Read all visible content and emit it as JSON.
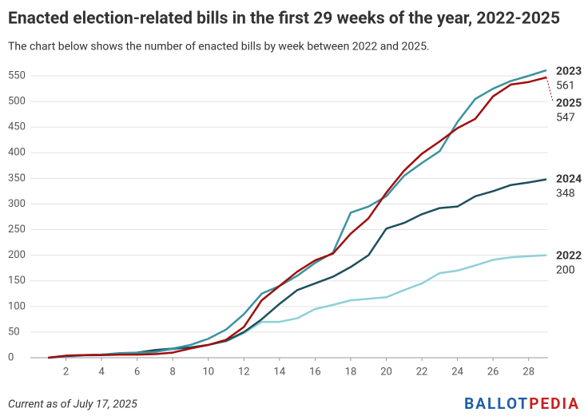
{
  "chart_data": {
    "type": "line",
    "title": "Enacted election-related bills in the first 29 weeks of the year, 2022-2025",
    "subtitle": "The chart below shows the number of enacted bills by week between 2022 and 2025.",
    "x": [
      1,
      2,
      3,
      4,
      5,
      6,
      7,
      8,
      9,
      10,
      11,
      12,
      13,
      14,
      15,
      16,
      17,
      18,
      19,
      20,
      21,
      22,
      23,
      24,
      25,
      26,
      27,
      28,
      29
    ],
    "series": [
      {
        "name": "2022",
        "color": "#8fd0d8",
        "values": [
          0,
          2,
          4,
          5,
          6,
          8,
          12,
          16,
          20,
          25,
          32,
          48,
          70,
          70,
          77,
          95,
          103,
          112,
          115,
          118,
          132,
          145,
          165,
          170,
          180,
          191,
          196,
          198,
          200
        ]
      },
      {
        "name": "2024",
        "color": "#1e4f5c",
        "values": [
          0,
          3,
          5,
          6,
          8,
          10,
          15,
          18,
          20,
          25,
          33,
          50,
          75,
          105,
          132,
          145,
          158,
          177,
          200,
          252,
          263,
          280,
          292,
          295,
          315,
          325,
          337,
          342,
          348
        ]
      },
      {
        "name": "2023",
        "color": "#3b939e",
        "values": [
          0,
          4,
          5,
          6,
          9,
          10,
          11,
          18,
          25,
          37,
          55,
          85,
          125,
          140,
          160,
          185,
          205,
          283,
          295,
          315,
          355,
          380,
          403,
          460,
          505,
          525,
          540,
          550,
          561
        ]
      },
      {
        "name": "2025",
        "color": "#a30d0d",
        "values": [
          0,
          4,
          5,
          5,
          6,
          6,
          7,
          10,
          18,
          25,
          35,
          60,
          112,
          140,
          168,
          190,
          203,
          242,
          272,
          322,
          365,
          398,
          422,
          448,
          466,
          510,
          533,
          538,
          547
        ]
      }
    ],
    "xlim": [
      0,
      29
    ],
    "xticks": [
      2,
      4,
      6,
      8,
      10,
      12,
      14,
      16,
      18,
      20,
      22,
      24,
      26,
      28
    ],
    "ylim": [
      0,
      550
    ],
    "yticks": [
      0,
      50,
      100,
      150,
      200,
      250,
      300,
      350,
      400,
      450,
      500,
      550
    ],
    "grid": true,
    "footnote": "Current as of July 17, 2025",
    "logo": [
      "BALLOT",
      "PEDIA"
    ]
  }
}
